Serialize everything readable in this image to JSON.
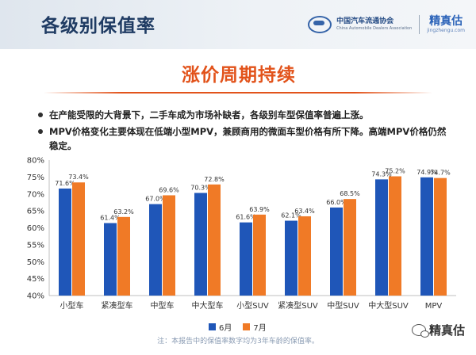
{
  "header": {
    "title": "各级别保值率",
    "org_cn": "中国汽车流通协会",
    "org_en": "China Automobile Dealers Association",
    "brand_cn": "精真估",
    "brand_url": "jingzhengu.com"
  },
  "banner": {
    "title": "涨价周期持续"
  },
  "bullets": [
    "在产能受限的大背景下，二手车成为市场补缺者，各级别车型保值率普遍上涨。",
    "MPV价格变化主要体现在低端小型MPV，兼顾商用的微面车型价格有所下降。高端MPV价格仍然稳定。"
  ],
  "chart_data": {
    "type": "bar",
    "categories": [
      "小型车",
      "紧凑型车",
      "中型车",
      "中大型车",
      "小型SUV",
      "紧凑型SUV",
      "中型SUV",
      "中大型SUV",
      "MPV"
    ],
    "series": [
      {
        "name": "6月",
        "values": [
          71.6,
          61.4,
          67.0,
          70.3,
          61.6,
          62.1,
          66.0,
          74.3,
          74.9
        ],
        "labels": [
          "71.6%",
          "61.4%",
          "67.0%",
          "70.3%",
          "61.6%",
          "62.1%",
          "66.0%",
          "74.3%",
          "74.9%"
        ],
        "color": "#1f56b8"
      },
      {
        "name": "7月",
        "values": [
          73.4,
          63.2,
          69.6,
          72.8,
          63.9,
          63.4,
          68.5,
          75.2,
          74.7
        ],
        "labels": [
          "73.4%",
          "63.2%",
          "69.6%",
          "72.8%",
          "63.9%",
          "63.4%",
          "68.5%",
          "75.2%",
          "74.7%"
        ],
        "color": "#f07a26"
      }
    ],
    "ylim": [
      40,
      80
    ],
    "yticks": [
      40,
      45,
      50,
      55,
      60,
      65,
      70,
      75,
      80
    ],
    "ytick_labels": [
      "40%",
      "45%",
      "50%",
      "55%",
      "60%",
      "65%",
      "70%",
      "75%",
      "80%"
    ],
    "grid": false,
    "legend": "bottom-center"
  },
  "footnote": "注：本报告中的保值率数字均为3年车龄的保值率。",
  "wechat": {
    "name": "精真估"
  }
}
